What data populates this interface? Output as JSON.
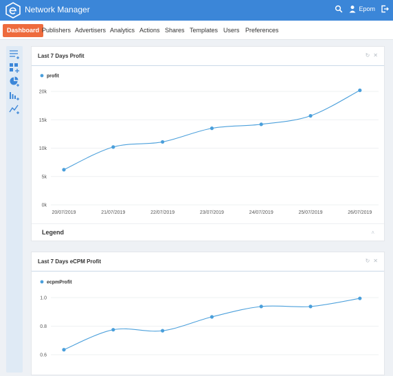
{
  "header": {
    "title": "Network Manager",
    "user_name": "Epom"
  },
  "nav": {
    "items": [
      "Dashboard",
      "Publishers",
      "Advertisers",
      "Analytics",
      "Actions",
      "Shares",
      "Templates",
      "Users",
      "Preferences"
    ],
    "active": "Dashboard"
  },
  "sidebar": {
    "icons": [
      "list-add-icon",
      "widgets-add-icon",
      "pie-chart-add-icon",
      "bar-chart-add-icon",
      "line-chart-add-icon"
    ]
  },
  "colors": {
    "accent": "#3b86d8",
    "active_tab": "#ee6b3d",
    "series": "#4a9fdb"
  },
  "panels": [
    {
      "title": "Last 7 Days Profit",
      "legend_label": "Legend",
      "chart_data": {
        "type": "line",
        "x": [
          "20/07/2019",
          "21/07/2019",
          "22/07/2019",
          "23/07/2019",
          "24/07/2019",
          "25/07/2019",
          "26/07/2019"
        ],
        "series": [
          {
            "name": "profit",
            "values": [
              6200,
              10200,
              11100,
              13500,
              14200,
              15700,
              20200
            ]
          }
        ],
        "yticks": [
          "0k",
          "5k",
          "10k",
          "15k",
          "20k"
        ],
        "ylim": [
          0,
          20000
        ],
        "grid": true
      }
    },
    {
      "title": "Last 7 Days eCPM Profit",
      "chart_data": {
        "type": "line",
        "series": [
          {
            "name": "ecpmProfit",
            "values": [
              0.635,
              0.775,
              0.768,
              0.865,
              0.938,
              0.938,
              0.995
            ]
          }
        ],
        "yticks": [
          "0.6",
          "0.8",
          "1.0"
        ],
        "ylim": [
          0.6,
          1.0
        ],
        "grid": true
      }
    }
  ]
}
